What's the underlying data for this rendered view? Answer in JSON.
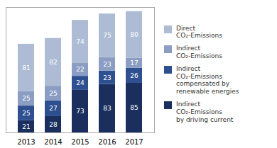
{
  "chart_data": {
    "type": "bar",
    "stacked": true,
    "data_labels": true,
    "tick_labels": "x",
    "grid": false,
    "legend": "right",
    "categories": [
      "2013",
      "2014",
      "2015",
      "2016",
      "2017"
    ],
    "series": [
      {
        "name": "Indirect\nCO₂-Emissions\nby driving current",
        "color": "#1b2f5e",
        "values": [
          21,
          28,
          73,
          83,
          85
        ]
      },
      {
        "name": "Indirect\nCO₂-Emissions\ncompensated by\nrenewable energies",
        "color": "#2e5090",
        "values": [
          25,
          27,
          24,
          23,
          26
        ]
      },
      {
        "name": "Indirect\nCO₂-Emissions",
        "color": "#8b9dc3",
        "values": [
          25,
          25,
          22,
          23,
          17
        ]
      },
      {
        "name": "Direct\nCO₂-Emissions",
        "color": "#adbbd4",
        "values": [
          81,
          82,
          74,
          75,
          80
        ]
      }
    ],
    "ylim": [
      0,
      215
    ]
  }
}
